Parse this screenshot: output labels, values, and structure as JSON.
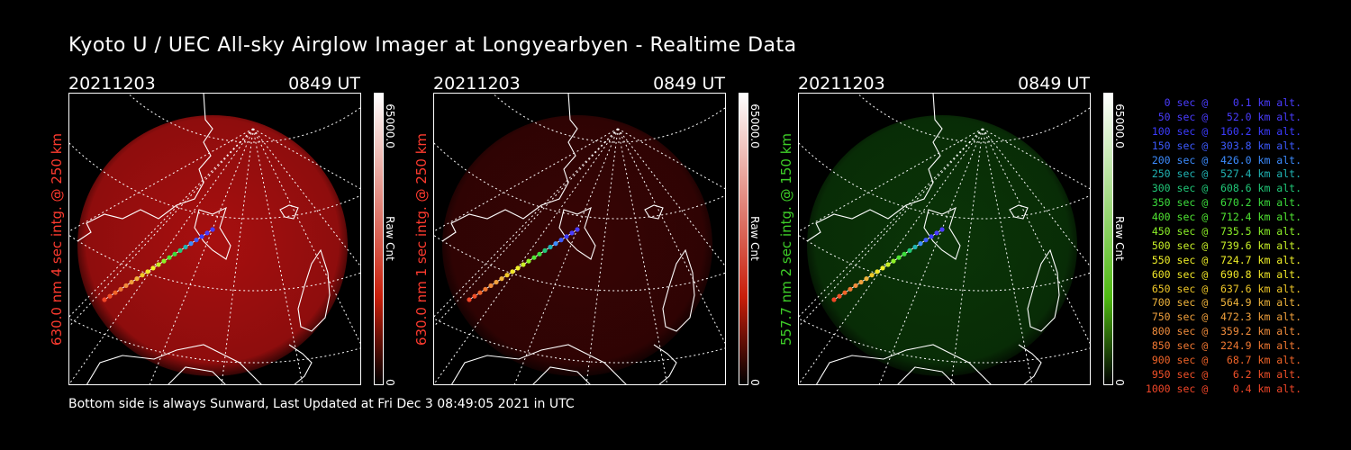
{
  "title": "Kyoto U / UEC All-sky Airglow Imager at Longyearbyen - Realtime Data",
  "footer": "Bottom side is always Sunward, Last Updated at Fri Dec  3 08:49:05 2021 in UTC",
  "colorbar": {
    "max_label": "65000.0",
    "unit_label": "Raw Cnt",
    "min_label": "0"
  },
  "panels": [
    {
      "date": "20211203",
      "time": "0849 UT",
      "ylabel": "630.0 nm 4 sec intg. @ 250 km",
      "label_color": "#ff3b2f",
      "glow_color": "#b01010",
      "glow_opacity": 0.95,
      "bar_color": "#c81e0a"
    },
    {
      "date": "20211203",
      "time": "0849 UT",
      "ylabel": "630.0 nm 1 sec intg. @ 250 km",
      "label_color": "#ff3b2f",
      "glow_color": "#3a0404",
      "glow_opacity": 0.95,
      "bar_color": "#c81e0a"
    },
    {
      "date": "20211203",
      "time": "0849 UT",
      "ylabel": "557.7 nm 2 sec intg. @ 150 km",
      "label_color": "#3ecf28",
      "glow_color": "#0b3a08",
      "glow_opacity": 0.9,
      "bar_color": "#4fb812"
    }
  ],
  "legend": [
    {
      "text": "   0 sec @    0.1 km alt.",
      "color": "#4a3cff"
    },
    {
      "text": "  50 sec @   52.0 km alt.",
      "color": "#4a3cff"
    },
    {
      "text": " 100 sec @  160.2 km alt.",
      "color": "#3c3cff"
    },
    {
      "text": " 150 sec @  303.8 km alt.",
      "color": "#3c5aff"
    },
    {
      "text": " 200 sec @  426.0 km alt.",
      "color": "#3c8cff"
    },
    {
      "text": " 250 sec @  527.4 km alt.",
      "color": "#20b4b4"
    },
    {
      "text": " 300 sec @  608.6 km alt.",
      "color": "#20c878"
    },
    {
      "text": " 350 sec @  670.2 km alt.",
      "color": "#3cdc3c"
    },
    {
      "text": " 400 sec @  712.4 km alt.",
      "color": "#50e632"
    },
    {
      "text": " 450 sec @  735.5 km alt.",
      "color": "#8cf028"
    },
    {
      "text": " 500 sec @  739.6 km alt.",
      "color": "#c8f028"
    },
    {
      "text": " 550 sec @  724.7 km alt.",
      "color": "#f0f028"
    },
    {
      "text": " 600 sec @  690.8 km alt.",
      "color": "#f0e628"
    },
    {
      "text": " 650 sec @  637.6 km alt.",
      "color": "#f0c828"
    },
    {
      "text": " 700 sec @  564.9 km alt.",
      "color": "#f0b43c"
    },
    {
      "text": " 750 sec @  472.3 km alt.",
      "color": "#f0a03c"
    },
    {
      "text": " 800 sec @  359.2 km alt.",
      "color": "#f08c3c"
    },
    {
      "text": " 850 sec @  224.9 km alt.",
      "color": "#f07832"
    },
    {
      "text": " 900 sec @   68.7 km alt.",
      "color": "#f06428"
    },
    {
      "text": " 950 sec @    6.2 km alt.",
      "color": "#f05028"
    },
    {
      "text": "1000 sec @    0.4 km alt.",
      "color": "#f04628"
    }
  ]
}
